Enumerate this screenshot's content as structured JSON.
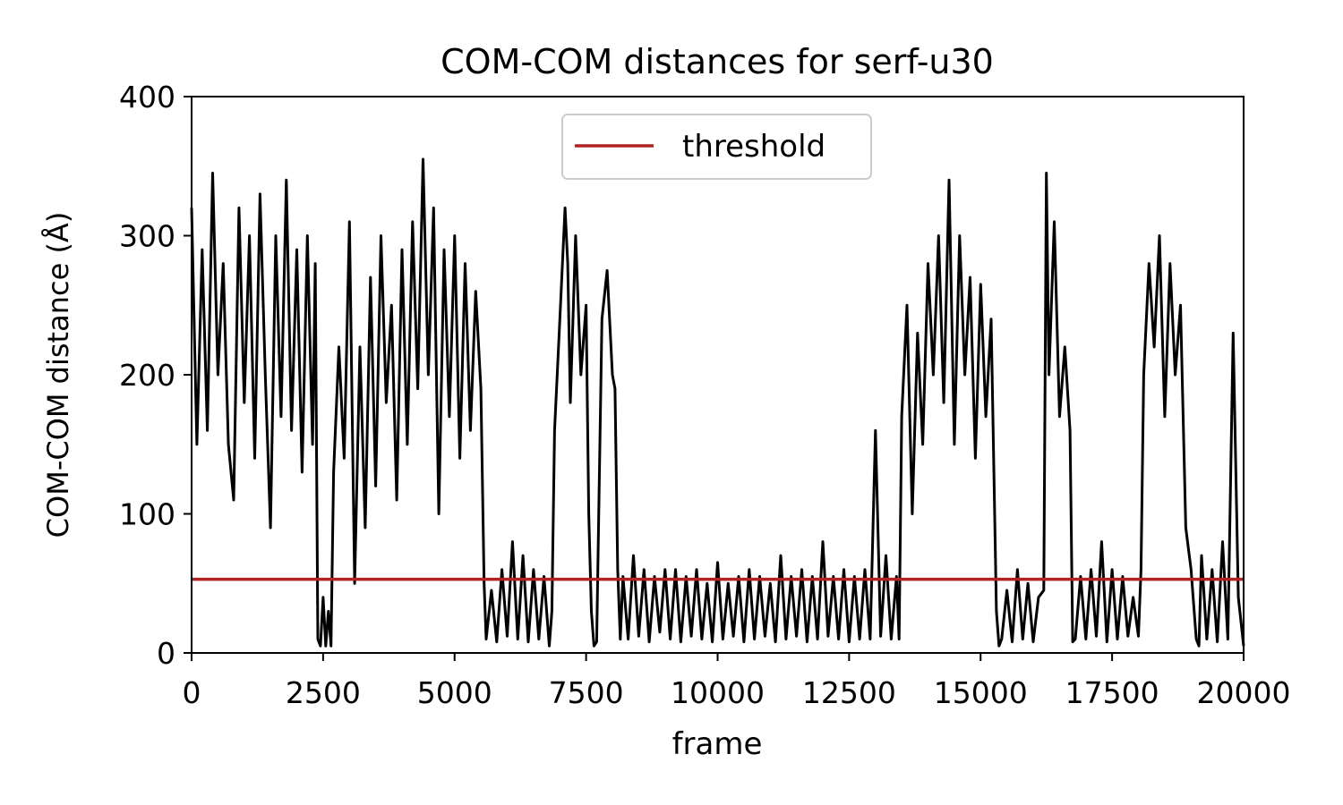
{
  "chart_data": {
    "type": "line",
    "title": "COM-COM distances for serf-u30",
    "xlabel": "frame",
    "ylabel": "COM-COM distance (Å)",
    "xlim": [
      0,
      20000
    ],
    "ylim": [
      0,
      400
    ],
    "xticks": [
      0,
      2500,
      5000,
      7500,
      10000,
      12500,
      15000,
      17500,
      20000
    ],
    "yticks": [
      0,
      100,
      200,
      300,
      400
    ],
    "grid": false,
    "legend_position": "upper center",
    "threshold": {
      "name": "threshold",
      "value": 53,
      "color": "#b22222"
    },
    "series": [
      {
        "color": "#000000",
        "x": [
          0,
          100,
          200,
          300,
          400,
          500,
          600,
          700,
          800,
          900,
          1000,
          1100,
          1200,
          1300,
          1400,
          1500,
          1600,
          1700,
          1800,
          1900,
          2000,
          2100,
          2200,
          2300,
          2350,
          2400,
          2450,
          2500,
          2550,
          2600,
          2650,
          2700,
          2800,
          2900,
          3000,
          3100,
          3200,
          3300,
          3400,
          3500,
          3600,
          3700,
          3800,
          3900,
          4000,
          4100,
          4200,
          4300,
          4400,
          4500,
          4600,
          4700,
          4800,
          4900,
          5000,
          5100,
          5200,
          5300,
          5400,
          5500,
          5560,
          5600,
          5700,
          5800,
          5900,
          6000,
          6100,
          6200,
          6300,
          6400,
          6500,
          6600,
          6700,
          6800,
          6850,
          6900,
          7000,
          7100,
          7150,
          7200,
          7300,
          7400,
          7500,
          7550,
          7600,
          7650,
          7700,
          7800,
          7900,
          8000,
          8050,
          8100,
          8150,
          8200,
          8300,
          8400,
          8500,
          8600,
          8700,
          8800,
          8900,
          9000,
          9100,
          9200,
          9300,
          9400,
          9500,
          9600,
          9700,
          9800,
          9900,
          10000,
          10100,
          10200,
          10300,
          10400,
          10500,
          10600,
          10700,
          10800,
          10900,
          11000,
          11100,
          11200,
          11300,
          11400,
          11500,
          11600,
          11700,
          11800,
          11900,
          12000,
          12100,
          12200,
          12300,
          12400,
          12500,
          12600,
          12700,
          12800,
          12900,
          13000,
          13100,
          13200,
          13300,
          13400,
          13450,
          13500,
          13600,
          13700,
          13800,
          13900,
          14000,
          14100,
          14200,
          14300,
          14400,
          14500,
          14600,
          14700,
          14800,
          14900,
          15000,
          15100,
          15200,
          15300,
          15350,
          15400,
          15500,
          15600,
          15700,
          15800,
          15900,
          16000,
          16100,
          16200,
          16250,
          16300,
          16400,
          16500,
          16600,
          16700,
          16750,
          16800,
          16900,
          17000,
          17100,
          17200,
          17300,
          17400,
          17500,
          17600,
          17700,
          17800,
          17900,
          18000,
          18050,
          18100,
          18200,
          18300,
          18400,
          18500,
          18600,
          18700,
          18800,
          18900,
          19000,
          19100,
          19150,
          19200,
          19300,
          19400,
          19500,
          19600,
          19700,
          19800,
          19900,
          20000
        ],
        "y": [
          320,
          150,
          290,
          160,
          345,
          200,
          280,
          150,
          110,
          320,
          180,
          300,
          140,
          330,
          200,
          90,
          300,
          170,
          340,
          160,
          290,
          130,
          300,
          150,
          280,
          10,
          5,
          40,
          5,
          30,
          5,
          130,
          220,
          140,
          310,
          50,
          220,
          90,
          270,
          120,
          300,
          180,
          250,
          110,
          290,
          150,
          310,
          190,
          355,
          200,
          320,
          100,
          290,
          170,
          300,
          140,
          280,
          160,
          260,
          190,
          50,
          10,
          45,
          8,
          60,
          12,
          80,
          10,
          70,
          8,
          60,
          10,
          55,
          5,
          30,
          160,
          240,
          320,
          280,
          180,
          300,
          200,
          250,
          100,
          30,
          5,
          8,
          240,
          275,
          200,
          190,
          60,
          10,
          55,
          10,
          70,
          12,
          60,
          8,
          55,
          15,
          60,
          10,
          60,
          8,
          55,
          12,
          60,
          10,
          50,
          8,
          65,
          10,
          50,
          12,
          55,
          8,
          60,
          10,
          55,
          12,
          50,
          8,
          70,
          10,
          55,
          12,
          60,
          8,
          55,
          10,
          80,
          12,
          55,
          10,
          60,
          8,
          55,
          10,
          60,
          10,
          160,
          12,
          70,
          10,
          55,
          10,
          170,
          250,
          100,
          230,
          150,
          280,
          200,
          300,
          180,
          340,
          150,
          300,
          200,
          270,
          140,
          265,
          170,
          240,
          30,
          5,
          10,
          45,
          8,
          60,
          10,
          50,
          8,
          40,
          45,
          345,
          200,
          310,
          170,
          220,
          160,
          8,
          10,
          55,
          10,
          60,
          12,
          80,
          8,
          60,
          10,
          55,
          12,
          40,
          12,
          60,
          200,
          280,
          220,
          300,
          170,
          280,
          200,
          250,
          90,
          60,
          10,
          5,
          70,
          10,
          60,
          8,
          80,
          10,
          230,
          40,
          5
        ]
      }
    ]
  }
}
